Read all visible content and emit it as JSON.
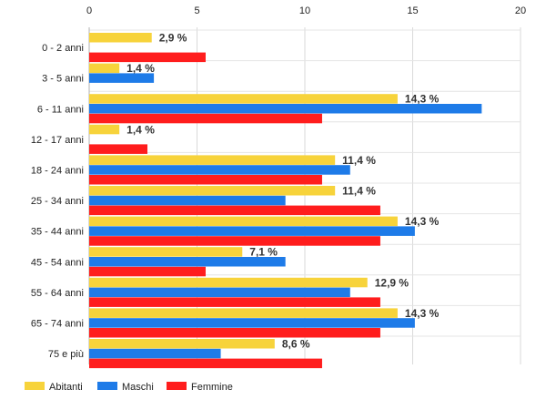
{
  "chart_data": {
    "type": "bar",
    "orientation": "horizontal",
    "categories": [
      "0 - 2 anni",
      "3 - 5 anni",
      "6 - 11 anni",
      "12 - 17 anni",
      "18 - 24 anni",
      "25 - 34 anni",
      "35 - 44 anni",
      "45 - 54 anni",
      "55 - 64 anni",
      "65 - 74 anni",
      "75 e più"
    ],
    "series": [
      {
        "name": "Abitanti",
        "color": "#f7d33b",
        "values": [
          2.9,
          1.4,
          14.3,
          1.4,
          11.4,
          11.4,
          14.3,
          7.1,
          12.9,
          14.3,
          8.6
        ],
        "data_labels": [
          "2,9 %",
          "1,4 %",
          "14,3 %",
          "1,4 %",
          "11,4 %",
          "11,4 %",
          "14,3 %",
          "7,1 %",
          "12,9 %",
          "14,3 %",
          "8,6 %"
        ]
      },
      {
        "name": "Maschi",
        "color": "#1e7be8",
        "values": [
          0,
          3.0,
          18.2,
          0,
          12.1,
          9.1,
          15.1,
          9.1,
          12.1,
          15.1,
          6.1
        ]
      },
      {
        "name": "Femmine",
        "color": "#ff1d1d",
        "values": [
          5.4,
          0,
          10.8,
          2.7,
          10.8,
          13.5,
          13.5,
          5.4,
          13.5,
          13.5,
          10.8
        ]
      }
    ],
    "xlim": [
      0,
      20
    ],
    "xticks": [
      0,
      5,
      10,
      15,
      20
    ],
    "x_axis_position": "top",
    "grid": true,
    "legend_position": "bottom-left",
    "title": "",
    "xlabel": "",
    "ylabel": ""
  }
}
